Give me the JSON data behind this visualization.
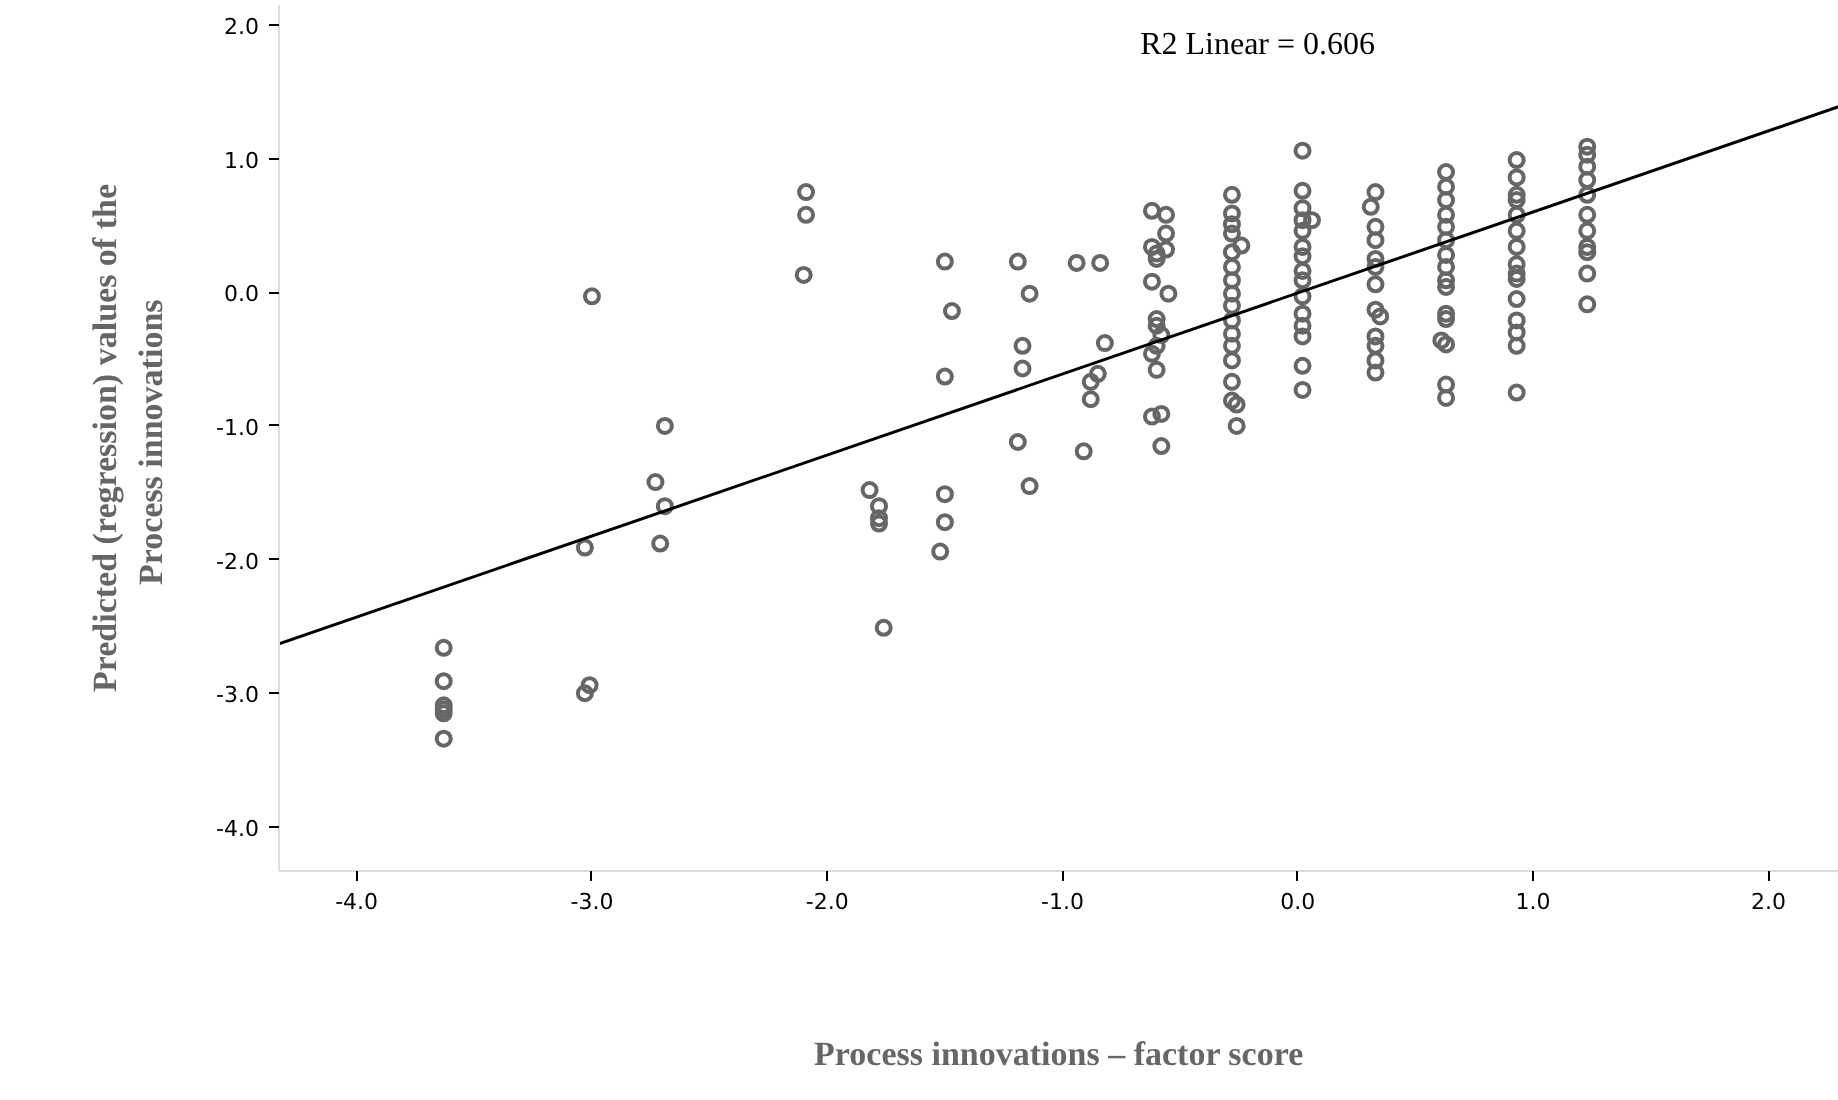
{
  "chart_data": {
    "type": "scatter",
    "xlabel": "Process innovations – factor score",
    "ylabel": "Predicted (regression) values of the\nProcess  innovations",
    "annotations": [
      "R2 Linear = 0.606"
    ],
    "xlim": [
      -4.33,
      2.3
    ],
    "ylim": [
      -4.33,
      2.15
    ],
    "xticks": [
      {
        "value": -4,
        "label": "-4.0"
      },
      {
        "value": -3,
        "label": "-3.0"
      },
      {
        "value": -2,
        "label": "-2.0"
      },
      {
        "value": -1,
        "label": "-1.0"
      },
      {
        "value": 0,
        "label": "0.0"
      },
      {
        "value": 1,
        "label": "1.0"
      },
      {
        "value": 2,
        "label": "2.0"
      }
    ],
    "yticks": [
      {
        "value": -4,
        "label": "-4.0"
      },
      {
        "value": -3,
        "label": "-3.0"
      },
      {
        "value": -2,
        "label": "-2.0"
      },
      {
        "value": -1,
        "label": "-1.0"
      },
      {
        "value": 0,
        "label": "0.0"
      },
      {
        "value": 1,
        "label": "1.0"
      },
      {
        "value": 2,
        "label": "2.0"
      }
    ],
    "grid": false,
    "marker": "circle",
    "series": [
      {
        "color": "#666666",
        "x": [
          -3.63,
          -3.63,
          -3.63,
          -3.63,
          -3.63,
          -3.63,
          -3.03,
          -3.01,
          -3.03,
          -3.0,
          -2.69,
          -2.69,
          -2.73,
          -2.71,
          -2.09,
          -2.09,
          -2.1,
          -1.82,
          -1.78,
          -1.78,
          -1.78,
          -1.76,
          -1.5,
          -1.5,
          -1.5,
          -1.5,
          -1.47,
          -1.52,
          -1.19,
          -1.19,
          -1.14,
          -1.14,
          -1.17,
          -1.17,
          -0.94,
          -0.84,
          -0.82,
          -0.85,
          -0.88,
          -0.88,
          -0.91,
          -0.62,
          -0.56,
          -0.56,
          -0.56,
          -0.62,
          -0.6,
          -0.6,
          -0.62,
          -0.55,
          -0.6,
          -0.6,
          -0.58,
          -0.6,
          -0.62,
          -0.6,
          -0.62,
          -0.58,
          -0.58,
          -0.28,
          -0.28,
          -0.28,
          -0.28,
          -0.28,
          -0.28,
          -0.28,
          -0.28,
          -0.28,
          -0.28,
          -0.28,
          -0.28,
          -0.28,
          -0.28,
          -0.28,
          -0.26,
          -0.26,
          -0.24,
          0.02,
          0.02,
          0.02,
          0.06,
          0.02,
          0.02,
          0.02,
          0.02,
          0.02,
          0.02,
          0.02,
          0.02,
          0.02,
          0.02,
          0.02,
          0.02,
          0.33,
          0.31,
          0.33,
          0.33,
          0.33,
          0.33,
          0.33,
          0.33,
          0.35,
          0.33,
          0.33,
          0.33,
          0.33,
          0.63,
          0.63,
          0.63,
          0.63,
          0.63,
          0.63,
          0.63,
          0.63,
          0.63,
          0.63,
          0.63,
          0.63,
          0.61,
          0.63,
          0.63,
          0.63,
          0.93,
          0.93,
          0.93,
          0.93,
          0.93,
          0.93,
          0.93,
          0.93,
          0.93,
          0.93,
          0.93,
          0.93,
          0.93,
          0.93,
          0.93,
          1.23,
          1.23,
          1.23,
          1.23,
          1.23,
          1.23,
          1.23,
          1.23,
          1.23,
          1.23,
          1.23
        ],
        "values": [
          -2.66,
          -2.91,
          -3.09,
          -3.12,
          -3.15,
          -3.34,
          -1.91,
          -2.94,
          -3.0,
          -0.03,
          -1.0,
          -1.6,
          -1.42,
          -1.88,
          0.75,
          0.58,
          0.13,
          -1.48,
          -1.6,
          -1.69,
          -1.73,
          -2.51,
          0.23,
          -0.63,
          -1.51,
          -1.72,
          -0.14,
          -1.94,
          0.23,
          -1.12,
          -0.01,
          -1.45,
          -0.4,
          -0.57,
          0.22,
          0.22,
          -0.38,
          -0.61,
          -0.67,
          -0.8,
          -1.19,
          0.61,
          0.58,
          0.44,
          0.32,
          0.34,
          0.29,
          0.25,
          0.08,
          -0.01,
          -0.2,
          -0.25,
          -0.32,
          -0.4,
          -0.46,
          -0.58,
          -0.93,
          -0.91,
          -1.15,
          0.73,
          0.59,
          0.51,
          0.44,
          0.3,
          0.19,
          0.09,
          -0.01,
          -0.1,
          -0.21,
          -0.31,
          -0.4,
          -0.51,
          -0.67,
          -0.81,
          -0.84,
          -1.0,
          0.35,
          1.06,
          0.76,
          0.63,
          0.54,
          0.54,
          0.46,
          0.34,
          0.27,
          0.16,
          0.09,
          -0.03,
          -0.16,
          -0.25,
          -0.33,
          -0.55,
          -0.73,
          0.75,
          0.64,
          0.49,
          0.39,
          0.25,
          0.19,
          0.06,
          -0.13,
          -0.18,
          -0.33,
          -0.4,
          -0.51,
          -0.6,
          0.9,
          0.79,
          0.69,
          0.58,
          0.49,
          0.39,
          0.28,
          0.19,
          0.09,
          0.04,
          -0.16,
          -0.2,
          -0.36,
          -0.39,
          -0.69,
          -0.79,
          0.99,
          0.86,
          0.73,
          0.69,
          0.58,
          0.46,
          0.34,
          0.21,
          0.14,
          0.1,
          -0.05,
          -0.21,
          -0.3,
          -0.4,
          -0.75,
          1.09,
          1.03,
          0.94,
          0.84,
          0.73,
          0.58,
          0.46,
          0.34,
          0.3,
          0.14,
          -0.09
        ]
      },
      {
        "type": "line",
        "color": "#000000",
        "marker": "none",
        "line_style": "solid",
        "x": [
          -4.33,
          2.3
        ],
        "values": [
          -2.63,
          1.39
        ]
      }
    ]
  }
}
